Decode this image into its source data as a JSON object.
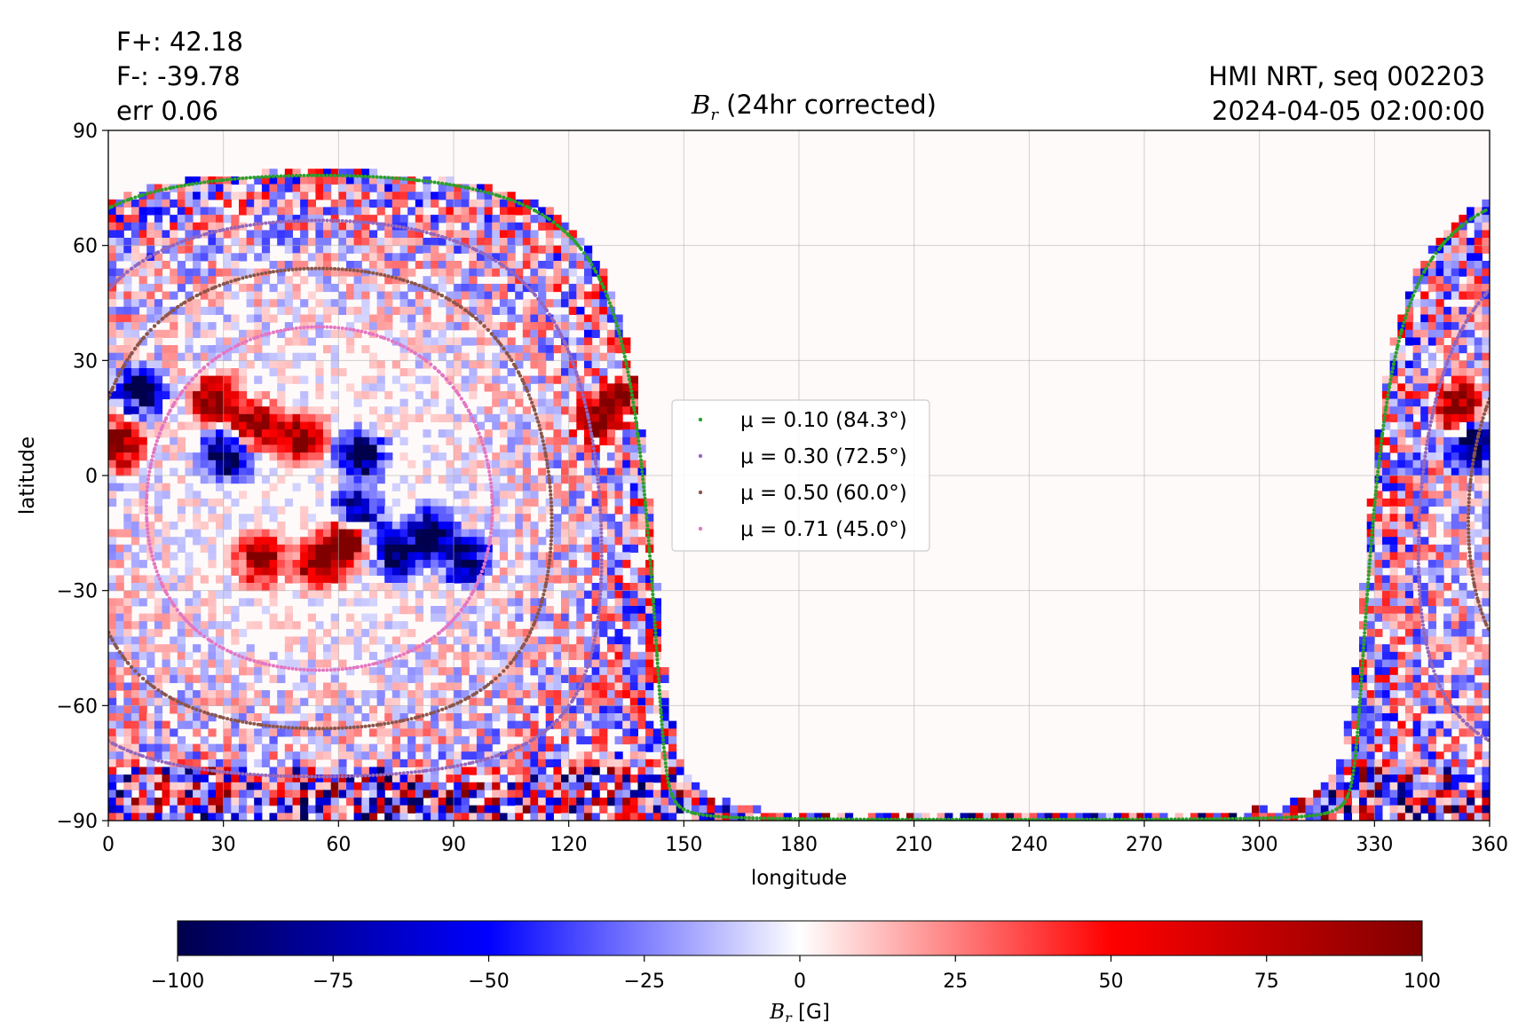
{
  "annotations": {
    "flux_pos": "F+: 42.18",
    "flux_neg": "F-: -39.78",
    "err": "err 0.06",
    "source": "HMI NRT, seq 002203",
    "timestamp": "2024-04-05 02:00:00"
  },
  "title": {
    "symbol": "B",
    "subscript": "r",
    "suffix": " (24hr corrected)"
  },
  "chart_data": {
    "type": "heatmap",
    "xlabel": "longitude",
    "ylabel": "latitude",
    "xlim": [
      0,
      360
    ],
    "ylim": [
      -90,
      90
    ],
    "grid": true,
    "xticks": [
      0,
      30,
      60,
      90,
      120,
      150,
      180,
      210,
      240,
      270,
      300,
      330,
      360
    ],
    "yticks": [
      90,
      60,
      30,
      0,
      -30,
      -60,
      -90
    ],
    "ytick_labels": [
      "90",
      "60",
      "30",
      "0",
      "−30",
      "−60",
      "−90"
    ],
    "disk_center": {
      "longitude": 55,
      "latitude": -6
    },
    "contours": [
      {
        "label": "μ = 0.10 (84.3°)",
        "mu": 0.1,
        "angle_deg": 84.3,
        "color": "#2ca02c"
      },
      {
        "label": "μ = 0.30 (72.5°)",
        "mu": 0.3,
        "angle_deg": 72.5,
        "color": "#9467bd"
      },
      {
        "label": "μ = 0.50 (60.0°)",
        "mu": 0.5,
        "angle_deg": 60.0,
        "color": "#8c564b"
      },
      {
        "label": "μ = 0.71 (45.0°)",
        "mu": 0.71,
        "angle_deg": 45.0,
        "color": "#e377c2"
      }
    ],
    "legend_position": "center",
    "colorbar": {
      "label_symbol": "B",
      "label_subscript": "r",
      "label_unit": " [G]",
      "range": [
        -100,
        100
      ],
      "ticks": [
        -100,
        -75,
        -50,
        -25,
        0,
        25,
        50,
        75,
        100
      ],
      "tick_labels": [
        "−100",
        "−75",
        "−50",
        "−25",
        "0",
        "25",
        "50",
        "75",
        "100"
      ],
      "colormap": "seismic",
      "colors": [
        "#00004c",
        "#0000ff",
        "#ffffff",
        "#ff0000",
        "#800000"
      ]
    },
    "active_regions": [
      {
        "lon": 38,
        "lat": 13,
        "polarity": "positive"
      },
      {
        "lon": 28,
        "lat": 20,
        "polarity": "positive"
      },
      {
        "lon": 31,
        "lat": 5,
        "polarity": "negative"
      },
      {
        "lon": 3,
        "lat": 8,
        "polarity": "positive"
      },
      {
        "lon": 8,
        "lat": 22,
        "polarity": "negative"
      },
      {
        "lon": 50,
        "lat": 10,
        "polarity": "positive"
      },
      {
        "lon": 66,
        "lat": 5,
        "polarity": "negative"
      },
      {
        "lon": 40,
        "lat": -22,
        "polarity": "positive"
      },
      {
        "lon": 55,
        "lat": -23,
        "polarity": "positive"
      },
      {
        "lon": 62,
        "lat": -17,
        "polarity": "positive"
      },
      {
        "lon": 65,
        "lat": -10,
        "polarity": "negative"
      },
      {
        "lon": 75,
        "lat": -20,
        "polarity": "negative"
      },
      {
        "lon": 84,
        "lat": -15,
        "polarity": "negative"
      },
      {
        "lon": 93,
        "lat": -22,
        "polarity": "negative"
      },
      {
        "lon": 128,
        "lat": 15,
        "polarity": "positive"
      },
      {
        "lon": 134,
        "lat": 22,
        "polarity": "positive"
      },
      {
        "lon": 356,
        "lat": 8,
        "polarity": "negative"
      },
      {
        "lon": 352,
        "lat": 18,
        "polarity": "positive"
      }
    ]
  }
}
